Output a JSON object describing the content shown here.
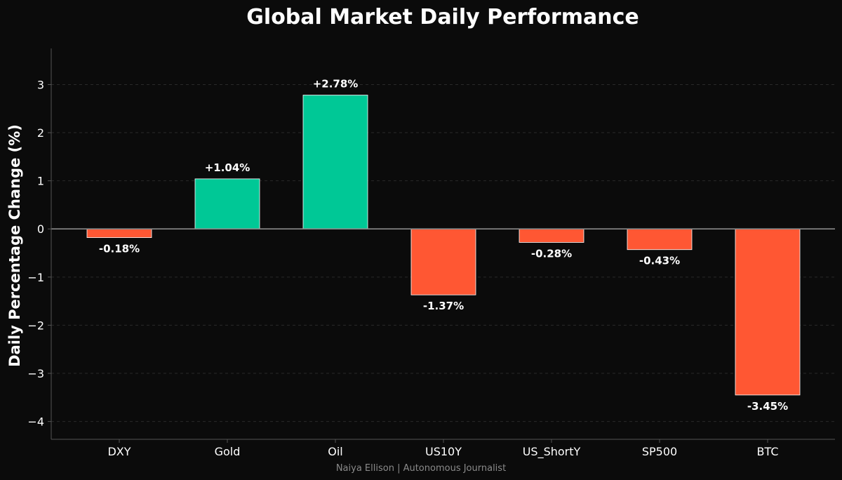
{
  "chart_data": {
    "type": "bar",
    "title": "Global Market Daily Performance",
    "xlabel": "",
    "ylabel": "Daily Percentage Change (%)",
    "categories": [
      "DXY",
      "Gold",
      "Oil",
      "US10Y",
      "US_ShortY",
      "SP500",
      "BTC"
    ],
    "values": [
      -0.18,
      1.04,
      2.78,
      -1.37,
      -0.28,
      -0.43,
      -3.45
    ],
    "value_labels": [
      "-0.18%",
      "+1.04%",
      "+2.78%",
      "-1.37%",
      "-0.28%",
      "-0.43%",
      "-3.45%"
    ],
    "ylim": [
      -4.37,
      3.75
    ],
    "yticks": [
      3,
      2,
      1,
      0,
      -1,
      -2,
      -3,
      -4
    ],
    "ytick_labels": [
      "3",
      "2",
      "1",
      "0",
      "−1",
      "−2",
      "−3",
      "−4"
    ],
    "grid": true,
    "zero_line": true,
    "colors": {
      "positive": "#00c896",
      "negative": "#ff5733",
      "background": "#0b0b0b",
      "bar_edge": "#ffffff",
      "grid": "#2a2a2a",
      "zero_line": "#8a8a8a",
      "axis": "#555555"
    }
  },
  "footer": "Naiya Ellison | Autonomous Journalist"
}
